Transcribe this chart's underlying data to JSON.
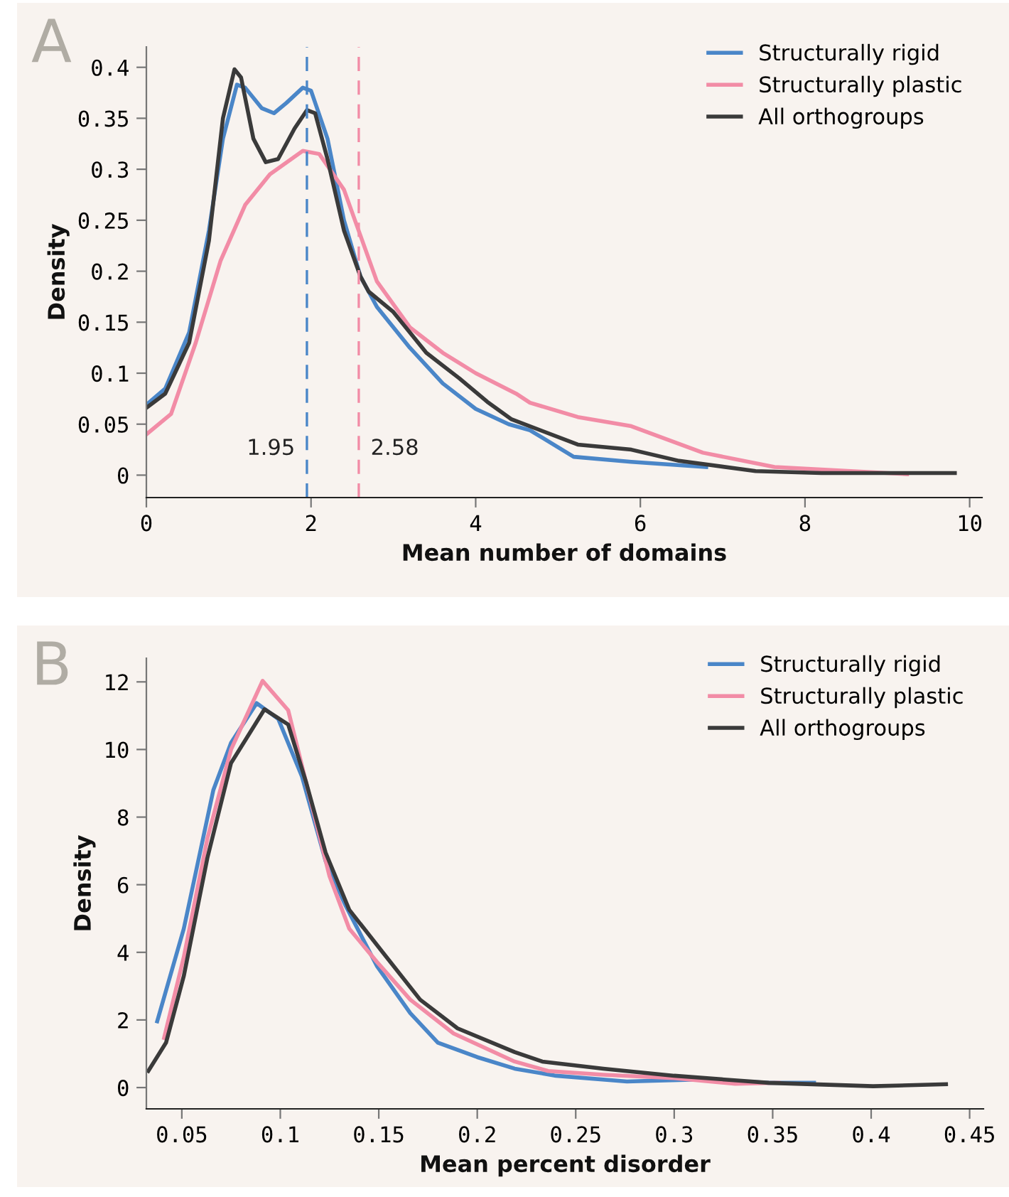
{
  "chart_data": [
    {
      "type": "line",
      "title": "A",
      "xlabel": "Mean number of domains",
      "ylabel": "Density",
      "xlim": [
        0,
        10.15
      ],
      "ylim": [
        -0.022,
        0.42
      ],
      "xticks": [
        0,
        2,
        4,
        6,
        8,
        10
      ],
      "yticks": [
        0,
        0.05,
        0.1,
        0.15,
        0.2,
        0.25,
        0.3,
        0.35,
        0.4
      ],
      "grid": false,
      "legend": "top right",
      "marker": "none",
      "line_style": "solid",
      "series": [
        {
          "name": "Structurally rigid",
          "color": "#4a86c8",
          "x": [
            0,
            0.23,
            0.52,
            0.76,
            0.93,
            1.1,
            1.2,
            1.4,
            1.55,
            1.7,
            1.9,
            2.0,
            2.2,
            2.4,
            2.6,
            2.8,
            3.2,
            3.6,
            4.0,
            4.4,
            4.66,
            5.19,
            5.89,
            6.8
          ],
          "values": [
            0.069,
            0.085,
            0.14,
            0.24,
            0.33,
            0.383,
            0.38,
            0.36,
            0.355,
            0.365,
            0.38,
            0.377,
            0.33,
            0.25,
            0.195,
            0.165,
            0.125,
            0.09,
            0.065,
            0.05,
            0.044,
            0.018,
            0.013,
            0.008
          ]
        },
        {
          "name": "Structurally plastic",
          "color": "#f28ca6",
          "x": [
            0,
            0.3,
            0.6,
            0.9,
            1.2,
            1.5,
            1.9,
            2.1,
            2.4,
            2.6,
            2.8,
            3.2,
            3.6,
            4.0,
            4.49,
            4.66,
            5.24,
            5.89,
            6.76,
            7.63,
            9.24
          ],
          "values": [
            0.04,
            0.06,
            0.13,
            0.21,
            0.265,
            0.295,
            0.318,
            0.315,
            0.28,
            0.235,
            0.19,
            0.145,
            0.12,
            0.1,
            0.08,
            0.071,
            0.057,
            0.048,
            0.022,
            0.008,
            0.001
          ]
        },
        {
          "name": "All orthogroups",
          "color": "#3a3a3a",
          "x": [
            0,
            0.23,
            0.52,
            0.76,
            0.93,
            1.07,
            1.15,
            1.3,
            1.45,
            1.6,
            1.8,
            1.95,
            2.05,
            2.2,
            2.4,
            2.6,
            2.7,
            3.0,
            3.4,
            3.8,
            4.14,
            4.43,
            5.24,
            5.89,
            6.47,
            7.4,
            8.2,
            9.82
          ],
          "values": [
            0.066,
            0.08,
            0.13,
            0.23,
            0.35,
            0.398,
            0.39,
            0.33,
            0.307,
            0.31,
            0.34,
            0.358,
            0.355,
            0.31,
            0.24,
            0.195,
            0.18,
            0.16,
            0.12,
            0.095,
            0.072,
            0.055,
            0.03,
            0.025,
            0.014,
            0.004,
            0.002,
            0.002
          ]
        }
      ],
      "ref_lines": [
        {
          "axis": "x",
          "value": 1.95,
          "label": "1.95",
          "color": "#4a86c8",
          "line_style": "dashed"
        },
        {
          "axis": "x",
          "value": 2.58,
          "label": "2.58",
          "color": "#f28ca6",
          "line_style": "dashed"
        }
      ]
    },
    {
      "type": "line",
      "title": "B",
      "xlabel": "Mean percent disorder",
      "ylabel": "Density",
      "xlim": [
        0.032,
        0.457
      ],
      "ylim": [
        -0.63,
        12.7
      ],
      "xticks": [
        0.05,
        0.1,
        0.15,
        0.2,
        0.25,
        0.3,
        0.35,
        0.4,
        0.45
      ],
      "yticks": [
        0,
        2,
        4,
        6,
        8,
        10,
        12
      ],
      "grid": false,
      "legend": "top right",
      "marker": "none",
      "line_style": "solid",
      "series": [
        {
          "name": "Structurally rigid",
          "color": "#4a86c8",
          "x": [
            0.0375,
            0.051,
            0.066,
            0.075,
            0.088,
            0.099,
            0.111,
            0.123,
            0.133,
            0.149,
            0.166,
            0.18,
            0.2,
            0.219,
            0.24,
            0.276,
            0.312,
            0.348,
            0.371
          ],
          "values": [
            1.96,
            4.7,
            8.8,
            10.2,
            11.37,
            10.9,
            9.2,
            6.7,
            5.4,
            3.6,
            2.2,
            1.33,
            0.9,
            0.56,
            0.35,
            0.18,
            0.24,
            0.14,
            0.14
          ]
        },
        {
          "name": "Structurally plastic",
          "color": "#f28ca6",
          "x": [
            0.041,
            0.051,
            0.063,
            0.075,
            0.091,
            0.104,
            0.113,
            0.125,
            0.135,
            0.149,
            0.166,
            0.188,
            0.219,
            0.236,
            0.264,
            0.3,
            0.331,
            0.353
          ],
          "values": [
            1.47,
            3.86,
            7.37,
            10.0,
            12.03,
            11.16,
            9.05,
            6.25,
            4.7,
            3.72,
            2.6,
            1.6,
            0.77,
            0.49,
            0.38,
            0.28,
            0.11,
            0.14
          ]
        },
        {
          "name": "All orthogroups",
          "color": "#3a3a3a",
          "x": [
            0.033,
            0.042,
            0.051,
            0.063,
            0.075,
            0.092,
            0.104,
            0.113,
            0.123,
            0.135,
            0.152,
            0.171,
            0.19,
            0.219,
            0.233,
            0.264,
            0.3,
            0.348,
            0.401,
            0.438
          ],
          "values": [
            0.49,
            1.33,
            3.3,
            6.8,
            9.6,
            11.19,
            10.74,
            9.05,
            6.95,
            5.26,
            4.0,
            2.6,
            1.75,
            1.05,
            0.77,
            0.56,
            0.35,
            0.14,
            0.04,
            0.1
          ]
        }
      ]
    }
  ]
}
